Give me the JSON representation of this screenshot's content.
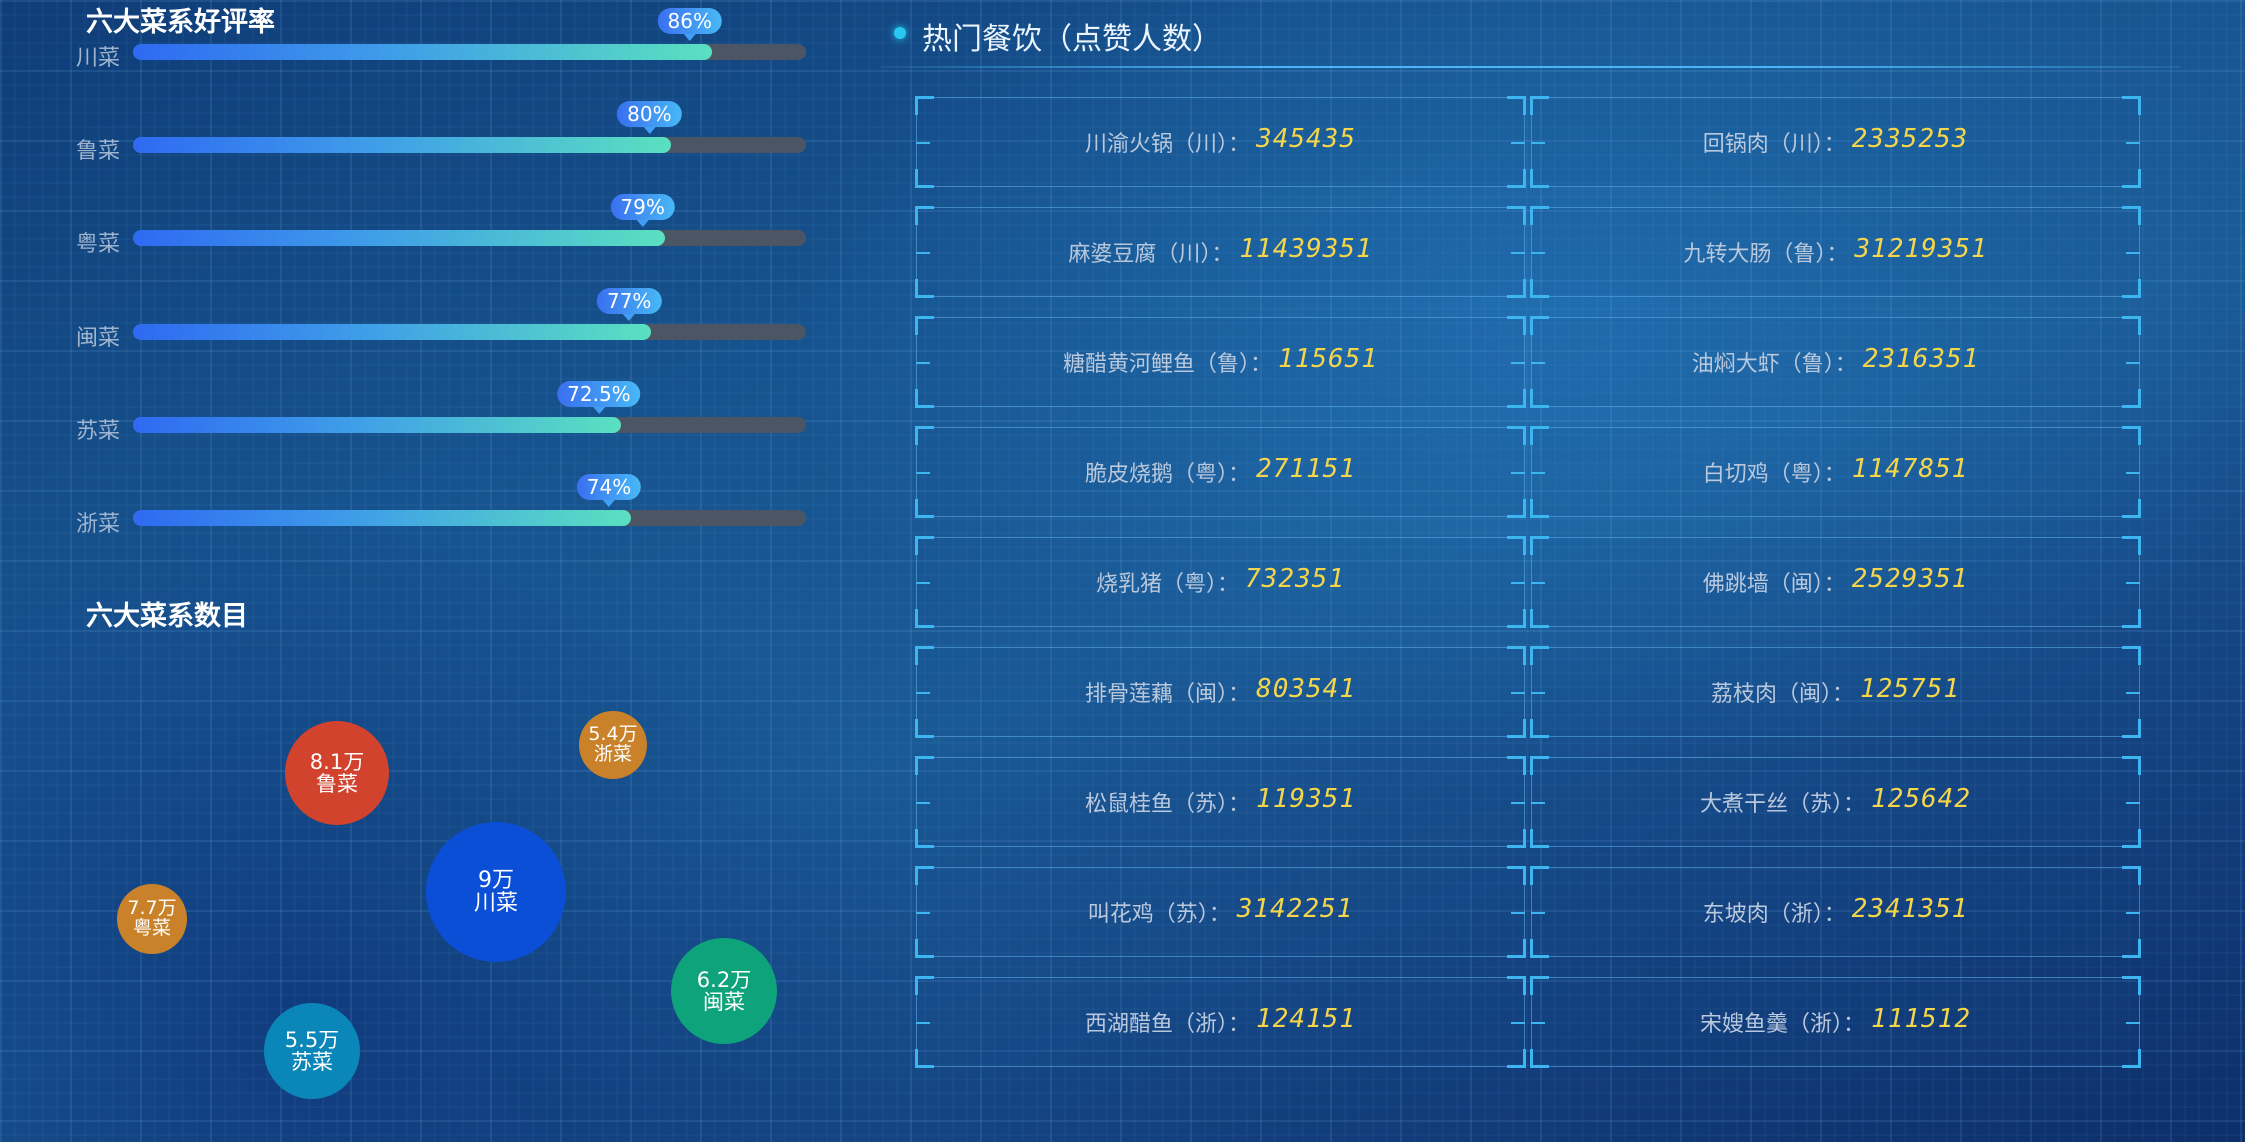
{
  "rating": {
    "title": "六大菜系好评率",
    "items": [
      {
        "name": "川菜",
        "label": "86%",
        "value": 0.86
      },
      {
        "name": "鲁菜",
        "label": "80%",
        "value": 0.8
      },
      {
        "name": "粤菜",
        "label": "79%",
        "value": 0.79
      },
      {
        "name": "闽菜",
        "label": "77%",
        "value": 0.77
      },
      {
        "name": "苏菜",
        "label": "72.5%",
        "value": 0.725
      },
      {
        "name": "浙菜",
        "label": "74%",
        "value": 0.74
      }
    ]
  },
  "count": {
    "title": "六大菜系数目",
    "bubbles": [
      {
        "value": "8.1万",
        "name": "鲁菜",
        "color": "#d2432e"
      },
      {
        "value": "5.4万",
        "name": "浙菜",
        "color": "#c9822a"
      },
      {
        "value": "9万",
        "name": "川菜",
        "color": "#0a4fd6"
      },
      {
        "value": "7.7万",
        "name": "粤菜",
        "color": "#c9822a"
      },
      {
        "value": "6.2万",
        "name": "闽菜",
        "color": "#0ea37a"
      },
      {
        "value": "5.5万",
        "name": "苏菜",
        "color": "#0b86b8"
      }
    ]
  },
  "hot": {
    "title": "热门餐饮（点赞人数）",
    "dishes": [
      {
        "name": "川渝火锅（川）：",
        "value": "345435"
      },
      {
        "name": "回锅肉（川）：",
        "value": "2335253"
      },
      {
        "name": "麻婆豆腐（川）：",
        "value": "11439351"
      },
      {
        "name": "九转大肠（鲁）：",
        "value": "31219351"
      },
      {
        "name": "糖醋黄河鲤鱼（鲁）：",
        "value": "115651"
      },
      {
        "name": "油焖大虾（鲁）：",
        "value": "2316351"
      },
      {
        "name": "脆皮烧鹅（粤）：",
        "value": "271151"
      },
      {
        "name": "白切鸡（粤）：",
        "value": "1147851"
      },
      {
        "name": "烧乳猪（粤）：",
        "value": "732351"
      },
      {
        "name": "佛跳墙（闽）：",
        "value": "2529351"
      },
      {
        "name": "排骨莲藕（闽）：",
        "value": "803541"
      },
      {
        "name": "荔枝肉（闽）：",
        "value": "125751"
      },
      {
        "name": "松鼠桂鱼（苏）：",
        "value": "119351"
      },
      {
        "name": "大煮干丝（苏）：",
        "value": "125642"
      },
      {
        "name": "叫花鸡（苏）：",
        "value": "3142251"
      },
      {
        "name": "东坡肉（浙）：",
        "value": "2341351"
      },
      {
        "name": "西湖醋鱼（浙）：",
        "value": "124151"
      },
      {
        "name": "宋嫂鱼羹（浙）：",
        "value": "111512"
      }
    ]
  }
}
